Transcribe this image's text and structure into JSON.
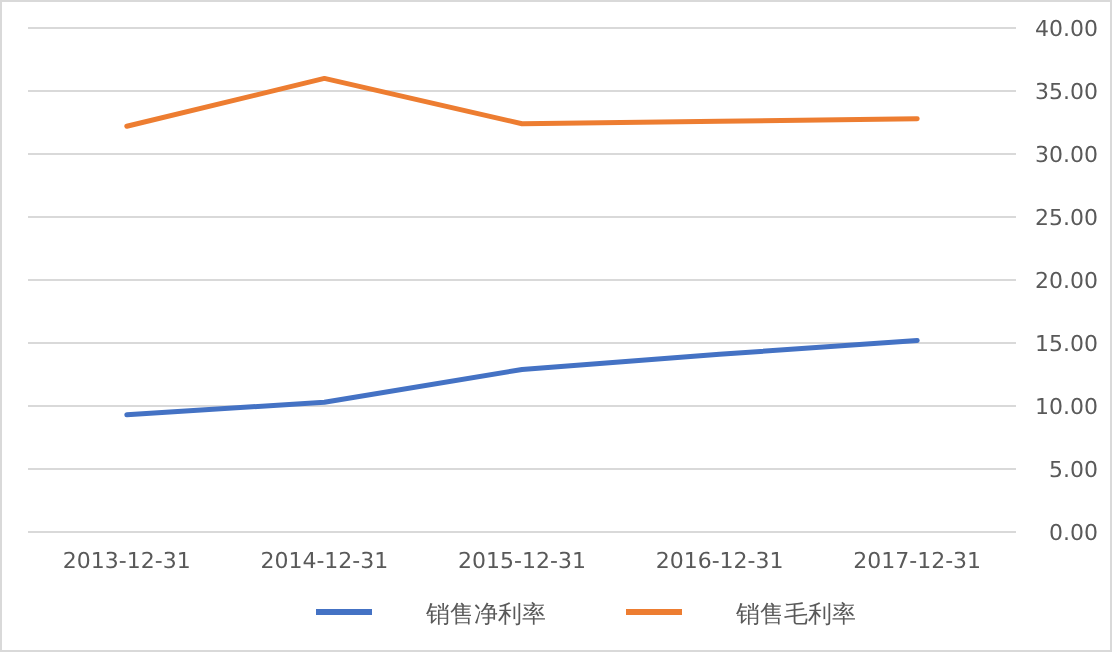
{
  "chart_data": {
    "type": "line",
    "categories": [
      "2013-12-31",
      "2014-12-31",
      "2015-12-31",
      "2016-12-31",
      "2017-12-31"
    ],
    "series": [
      {
        "name": "销售净利率",
        "color": "#4472c4",
        "values": [
          9.3,
          10.3,
          12.9,
          14.1,
          15.2
        ]
      },
      {
        "name": "销售毛利率",
        "color": "#ed7d31",
        "values": [
          32.2,
          36.0,
          32.4,
          32.6,
          32.8
        ]
      }
    ],
    "ylim": [
      0,
      40
    ],
    "yticks": [
      {
        "value": 0,
        "label": "0.00"
      },
      {
        "value": 5,
        "label": "5.00"
      },
      {
        "value": 10,
        "label": "10.00"
      },
      {
        "value": 15,
        "label": "15.00"
      },
      {
        "value": 20,
        "label": "20.00"
      },
      {
        "value": 25,
        "label": "25.00"
      },
      {
        "value": 30,
        "label": "30.00"
      },
      {
        "value": 35,
        "label": "35.00"
      },
      {
        "value": 40,
        "label": "40.00"
      }
    ],
    "grid": "y",
    "legend": "bottom",
    "marker": "none",
    "line_style": "solid"
  }
}
